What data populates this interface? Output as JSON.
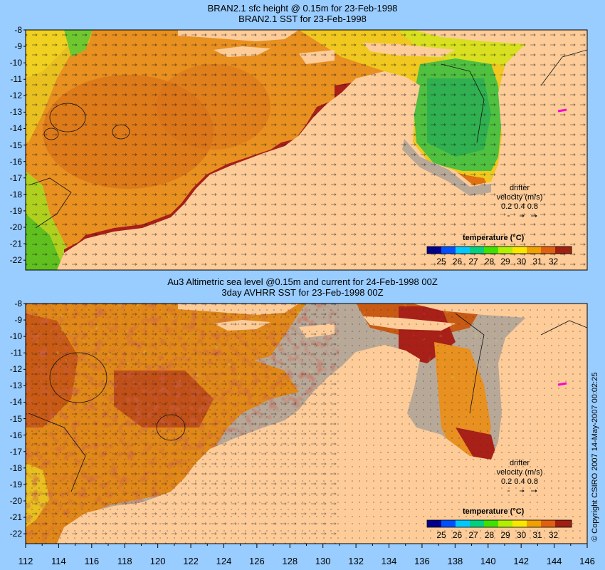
{
  "colors": {
    "background": "#99ccff",
    "land": "#fdcc99",
    "no_data": "#c8b4a0",
    "sst_scale": [
      "#00008b",
      "#0050ff",
      "#00c8ff",
      "#00d080",
      "#40e000",
      "#b0f000",
      "#f8e800",
      "#f0a000",
      "#e06010",
      "#a02010"
    ]
  },
  "panel_top": {
    "title_line1": "BRAN2.1 sfc height @ 0.15m for 23-Feb-1998",
    "title_line2": "BRAN2.1 SST for 23-Feb-1998",
    "legend_title": "temperature (°C)",
    "legend_labels": [
      "25",
      "26",
      "27",
      "28",
      "29",
      "30",
      "31",
      "32"
    ],
    "drifter": {
      "line1": "drifter",
      "line2": "velocity (m/s)",
      "line3": "0.2 0.4 0.8"
    }
  },
  "panel_bottom": {
    "title_line1": "Au3 Altimetric sea level  @0.15m and current for 24-Feb-1998 00Z",
    "title_line2": "3day AVHRR SST for 23-Feb-1998 00Z",
    "legend_title": "temperature (°C)",
    "legend_labels": [
      "25",
      "26",
      "27",
      "28",
      "29",
      "30",
      "31",
      "32"
    ],
    "drifter": {
      "line1": "drifter",
      "line2": "velocity (m/s)",
      "line3": "0.2 0.4 0.8"
    }
  },
  "axes": {
    "lat_ticks": [
      "-8",
      "-9",
      "-10",
      "-11",
      "-12",
      "-13",
      "-14",
      "-15",
      "-16",
      "-17",
      "-18",
      "-19",
      "-20",
      "-21",
      "-22"
    ],
    "lon_ticks": [
      "112",
      "114",
      "116",
      "118",
      "120",
      "122",
      "124",
      "126",
      "128",
      "130",
      "132",
      "134",
      "136",
      "138",
      "140",
      "142",
      "144",
      "146"
    ]
  },
  "copyright": "© Copyright CSIRO 2007  14-May-2007 00:02:25"
}
